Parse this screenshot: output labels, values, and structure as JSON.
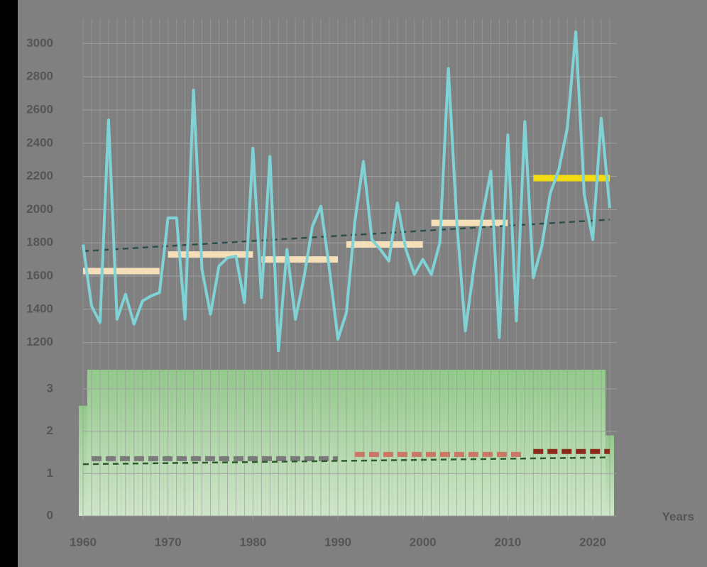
{
  "chart_data": [
    {
      "type": "line",
      "x": [
        1960,
        1961,
        1962,
        1963,
        1964,
        1965,
        1966,
        1967,
        1968,
        1969,
        1970,
        1971,
        1972,
        1973,
        1974,
        1975,
        1976,
        1977,
        1978,
        1979,
        1980,
        1981,
        1982,
        1983,
        1984,
        1985,
        1986,
        1987,
        1988,
        1989,
        1990,
        1991,
        1992,
        1993,
        1994,
        1995,
        1996,
        1997,
        1998,
        1999,
        2000,
        2001,
        2002,
        2003,
        2004,
        2005,
        2006,
        2007,
        2008,
        2009,
        2010,
        2011,
        2012,
        2013,
        2014,
        2015,
        2016,
        2017,
        2018,
        2019,
        2020,
        2021,
        2022
      ],
      "series": [
        {
          "color": "#7fd3d6",
          "values": [
            1790,
            1420,
            1320,
            2540,
            1340,
            1490,
            1310,
            1450,
            1480,
            1500,
            1950,
            1950,
            1340,
            2720,
            1640,
            1370,
            1660,
            1710,
            1720,
            1440,
            2370,
            1470,
            2320,
            1150,
            1760,
            1340,
            1590,
            1900,
            2020,
            1640,
            1220,
            1380,
            1930,
            2290,
            1820,
            1760,
            1690,
            2040,
            1760,
            1610,
            1700,
            1610,
            1800,
            2850,
            1920,
            1270,
            1650,
            1960,
            2230,
            1230,
            2450,
            1330,
            2530,
            1590,
            1780,
            2100,
            2240,
            2490,
            3070,
            2090,
            1820,
            2550,
            2010
          ]
        }
      ],
      "period_means": [
        {
          "start": 1960,
          "end": 1969,
          "value": 1630,
          "color": "#f5dfb8"
        },
        {
          "start": 1970,
          "end": 1980,
          "value": 1730,
          "color": "#f5dfb8"
        },
        {
          "start": 1981,
          "end": 1990,
          "value": 1700,
          "color": "#f5dfb8"
        },
        {
          "start": 1991,
          "end": 2000,
          "value": 1790,
          "color": "#f5dfb8"
        },
        {
          "start": 2001,
          "end": 2010,
          "value": 1920,
          "color": "#f5dfb8"
        },
        {
          "start": 2013,
          "end": 2022,
          "value": 2190,
          "color": "#f2dc10"
        }
      ],
      "trend": {
        "x": [
          1960,
          2022
        ],
        "values": [
          1750,
          1940
        ],
        "color": "#2f4f4f"
      },
      "xlim": [
        1960,
        2022
      ],
      "ylim": [
        1100,
        3100
      ],
      "yticks": [
        1200,
        1400,
        1600,
        1800,
        2000,
        2200,
        2400,
        2600,
        2800,
        3000
      ],
      "grid": true
    },
    {
      "type": "bar",
      "x": [
        1960,
        1961,
        1962,
        1963,
        1964,
        1965,
        1966,
        1967,
        1968,
        1969,
        1970,
        1971,
        1972,
        1973,
        1974,
        1975,
        1976,
        1977,
        1978,
        1979,
        1980,
        1981,
        1982,
        1983,
        1984,
        1985,
        1986,
        1987,
        1988,
        1989,
        1990,
        1991,
        1992,
        1993,
        1994,
        1995,
        1996,
        1997,
        1998,
        1999,
        2000,
        2001,
        2002,
        2003,
        2004,
        2005,
        2006,
        2007,
        2008,
        2009,
        2010,
        2011,
        2012,
        2013,
        2014,
        2015,
        2016,
        2017,
        2018,
        2019,
        2020,
        2021,
        2022
      ],
      "values": [
        2.6,
        3.45,
        3.45,
        3.45,
        3.45,
        3.45,
        3.45,
        3.45,
        3.45,
        3.45,
        3.45,
        3.45,
        3.45,
        3.45,
        3.45,
        3.45,
        3.45,
        3.45,
        3.45,
        3.45,
        3.45,
        3.45,
        3.45,
        3.45,
        3.45,
        3.45,
        3.45,
        3.45,
        3.45,
        3.45,
        3.45,
        3.45,
        3.45,
        3.45,
        3.45,
        3.45,
        3.45,
        3.45,
        3.45,
        3.45,
        3.45,
        3.45,
        3.45,
        3.45,
        3.45,
        3.45,
        3.45,
        3.45,
        3.45,
        3.45,
        3.45,
        3.45,
        3.45,
        3.45,
        3.45,
        3.45,
        3.45,
        3.45,
        3.45,
        3.45,
        3.45,
        3.45,
        1.9
      ],
      "color": "#9ccc94",
      "period_means": [
        {
          "start": 1961,
          "end": 1990,
          "value": 1.35,
          "color": "#7a7a7a"
        },
        {
          "start": 1992,
          "end": 2012,
          "value": 1.45,
          "color": "#cc7766"
        },
        {
          "start": 2013,
          "end": 2022,
          "value": 1.52,
          "color": "#8b2a1a"
        }
      ],
      "trend": {
        "x": [
          1960,
          2022
        ],
        "values": [
          1.22,
          1.38
        ],
        "color": "#2e5a2e"
      },
      "xlim": [
        1960,
        2022
      ],
      "ylim": [
        0,
        3.5
      ],
      "xticks": [
        1960,
        1970,
        1980,
        1990,
        2000,
        2010,
        2020
      ],
      "yticks": [
        0,
        1,
        2,
        3
      ],
      "xlabel": "Years",
      "grid": true
    }
  ]
}
